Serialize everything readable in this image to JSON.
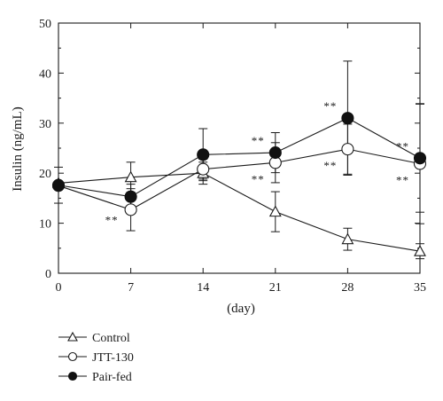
{
  "chart_data": {
    "type": "line",
    "x": [
      0,
      7,
      14,
      21,
      28,
      35
    ],
    "xlabel": "(day)",
    "ylabel": "Insulin (ng/mL)",
    "xlim": [
      0,
      35
    ],
    "ylim": [
      0,
      50
    ],
    "x_ticks": [
      0,
      7,
      14,
      21,
      28,
      35
    ],
    "y_ticks": [
      0,
      10,
      20,
      30,
      40,
      50
    ],
    "grid": false,
    "legend_position": "bottom-left",
    "series": [
      {
        "name": "Control",
        "marker": "open-triangle",
        "values": [
          18.0,
          19.2,
          20.0,
          12.3,
          6.8,
          4.4
        ],
        "error": [
          null,
          3.0,
          2.2,
          4.0,
          2.2,
          1.5
        ]
      },
      {
        "name": "JTT-130",
        "marker": "open-circle",
        "values": [
          17.5,
          12.7,
          20.8,
          22.1,
          24.8,
          21.9
        ],
        "error": [
          null,
          4.2,
          2.0,
          4.0,
          5.0,
          12.0
        ]
      },
      {
        "name": "Pair-fed",
        "marker": "filled-circle",
        "values": [
          17.6,
          15.3,
          23.7,
          24.1,
          31.0,
          23.0
        ],
        "error": [
          3.6,
          2.5,
          5.2,
          4.0,
          11.4,
          10.8
        ]
      }
    ],
    "annotations": [
      {
        "text": "**",
        "x": 7,
        "y": 12.7,
        "side": "left"
      },
      {
        "text": "**",
        "x": 21,
        "y": 24.1,
        "side": "above"
      },
      {
        "text": "**",
        "x": 21,
        "y": 22.1,
        "side": "below"
      },
      {
        "text": "**",
        "x": 28,
        "y": 31.0,
        "side": "above"
      },
      {
        "text": "**",
        "x": 28,
        "y": 24.8,
        "side": "below"
      },
      {
        "text": "**",
        "x": 35,
        "y": 23.0,
        "side": "above"
      },
      {
        "text": "**",
        "x": 35,
        "y": 21.9,
        "side": "below"
      }
    ]
  }
}
